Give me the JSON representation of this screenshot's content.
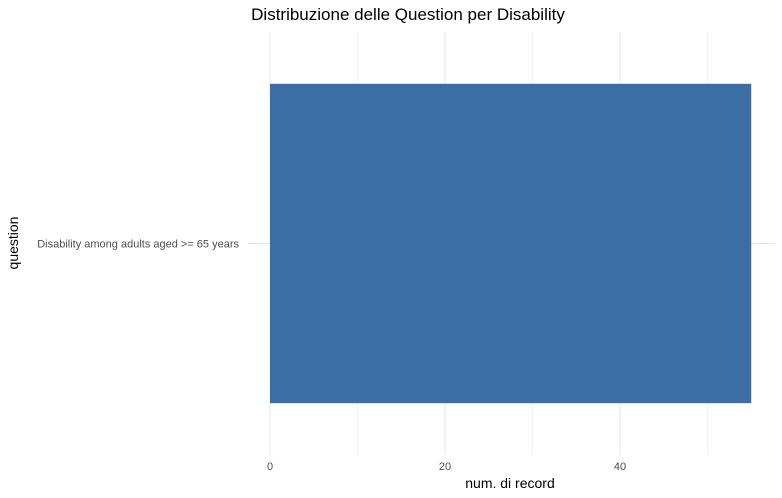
{
  "chart_data": {
    "type": "bar",
    "orientation": "horizontal",
    "title": "Distribuzione delle Question per Disability",
    "xlabel": "num. di record",
    "ylabel": "question",
    "categories": [
      "Disability among adults aged >= 65 years"
    ],
    "values": [
      55
    ],
    "xlim": [
      0,
      58
    ],
    "xticks": [
      0,
      20,
      40
    ],
    "grid": true,
    "legend": "none",
    "bar_color": "#3a6ea5"
  }
}
